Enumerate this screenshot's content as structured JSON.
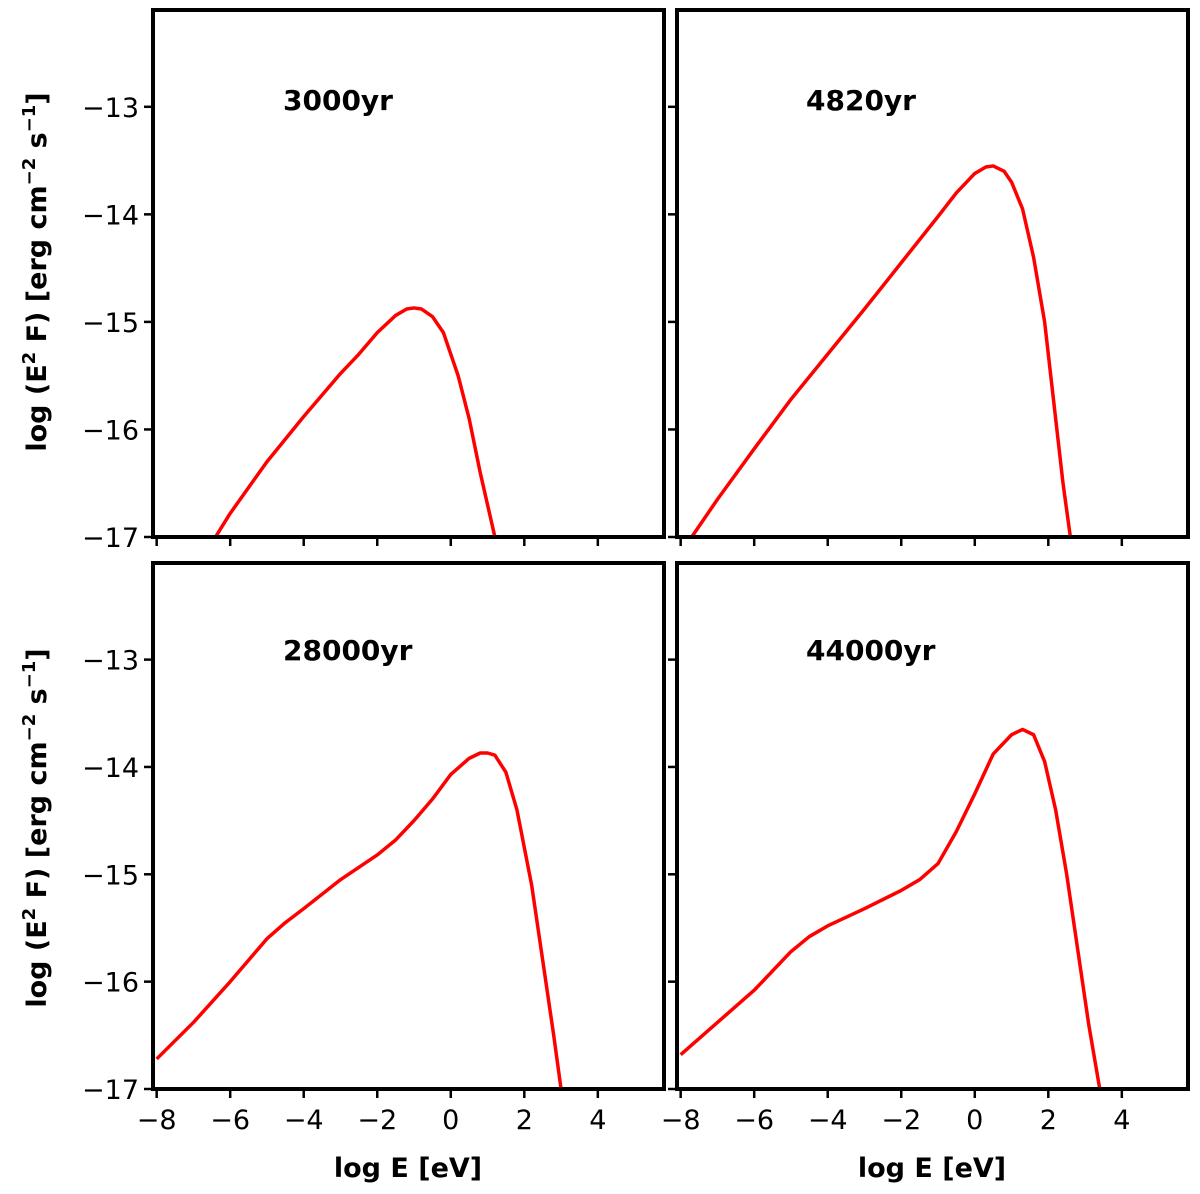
{
  "chart_data": {
    "type": "line",
    "layout": "2x2 grid, shared axes",
    "xlabel": "log E [eV]",
    "ylabel": "log (E² F) [erg cm⁻² s⁻¹]",
    "ylabel_parts": {
      "a": "log (E",
      "sup1": "2",
      "b": " F) [erg cm",
      "sup2": "−2",
      "c": " s",
      "sup3": "−1",
      "d": "]"
    },
    "xlim": [
      -8.1,
      5.8
    ],
    "ylim": [
      -17,
      -12.1
    ],
    "xticks": [
      -8,
      -6,
      -4,
      -2,
      0,
      2,
      4
    ],
    "xtick_labels": [
      "−8",
      "−6",
      "−4",
      "−2",
      "0",
      "2",
      "4"
    ],
    "yticks": [
      -13,
      -14,
      -15,
      -16,
      -17
    ],
    "ytick_labels": [
      "−13",
      "−14",
      "−15",
      "−16",
      "−17"
    ],
    "line_color": "#ff0000",
    "panels": [
      {
        "label": "3000yr",
        "x": [
          -6.4,
          -6.0,
          -5.0,
          -4.0,
          -3.0,
          -2.5,
          -2.0,
          -1.5,
          -1.2,
          -1.0,
          -0.8,
          -0.5,
          -0.2,
          0.2,
          0.5,
          0.8,
          1.0,
          1.2
        ],
        "y": [
          -17.0,
          -16.78,
          -16.3,
          -15.88,
          -15.48,
          -15.3,
          -15.1,
          -14.94,
          -14.88,
          -14.87,
          -14.88,
          -14.95,
          -15.1,
          -15.5,
          -15.9,
          -16.4,
          -16.7,
          -17.0
        ]
      },
      {
        "label": "4820yr",
        "x": [
          -7.7,
          -7.0,
          -6.0,
          -5.0,
          -4.0,
          -3.0,
          -2.0,
          -1.0,
          -0.5,
          0.0,
          0.3,
          0.5,
          0.8,
          1.0,
          1.3,
          1.6,
          1.9,
          2.2,
          2.4,
          2.6
        ],
        "y": [
          -17.0,
          -16.65,
          -16.18,
          -15.72,
          -15.3,
          -14.88,
          -14.45,
          -14.02,
          -13.8,
          -13.62,
          -13.56,
          -13.55,
          -13.6,
          -13.7,
          -13.95,
          -14.4,
          -15.0,
          -15.9,
          -16.5,
          -17.0
        ]
      },
      {
        "label": "28000yr",
        "x": [
          -8.0,
          -7.0,
          -6.0,
          -5.0,
          -4.5,
          -4.0,
          -3.0,
          -2.0,
          -1.5,
          -1.0,
          -0.5,
          0.0,
          0.5,
          0.8,
          1.0,
          1.2,
          1.5,
          1.8,
          2.2,
          2.5,
          2.8,
          3.0
        ],
        "y": [
          -16.72,
          -16.38,
          -16.0,
          -15.6,
          -15.45,
          -15.32,
          -15.05,
          -14.82,
          -14.68,
          -14.5,
          -14.3,
          -14.07,
          -13.92,
          -13.87,
          -13.87,
          -13.89,
          -14.05,
          -14.4,
          -15.1,
          -15.8,
          -16.5,
          -17.0
        ]
      },
      {
        "label": "44000yr",
        "x": [
          -8.0,
          -7.0,
          -6.0,
          -5.0,
          -4.5,
          -4.0,
          -3.0,
          -2.0,
          -1.5,
          -1.0,
          -0.5,
          0.0,
          0.5,
          1.0,
          1.3,
          1.6,
          1.9,
          2.2,
          2.5,
          2.8,
          3.1,
          3.4
        ],
        "y": [
          -16.68,
          -16.38,
          -16.08,
          -15.72,
          -15.58,
          -15.48,
          -15.32,
          -15.15,
          -15.05,
          -14.9,
          -14.6,
          -14.25,
          -13.88,
          -13.7,
          -13.65,
          -13.7,
          -13.95,
          -14.4,
          -15.0,
          -15.7,
          -16.4,
          -17.0
        ]
      }
    ]
  }
}
